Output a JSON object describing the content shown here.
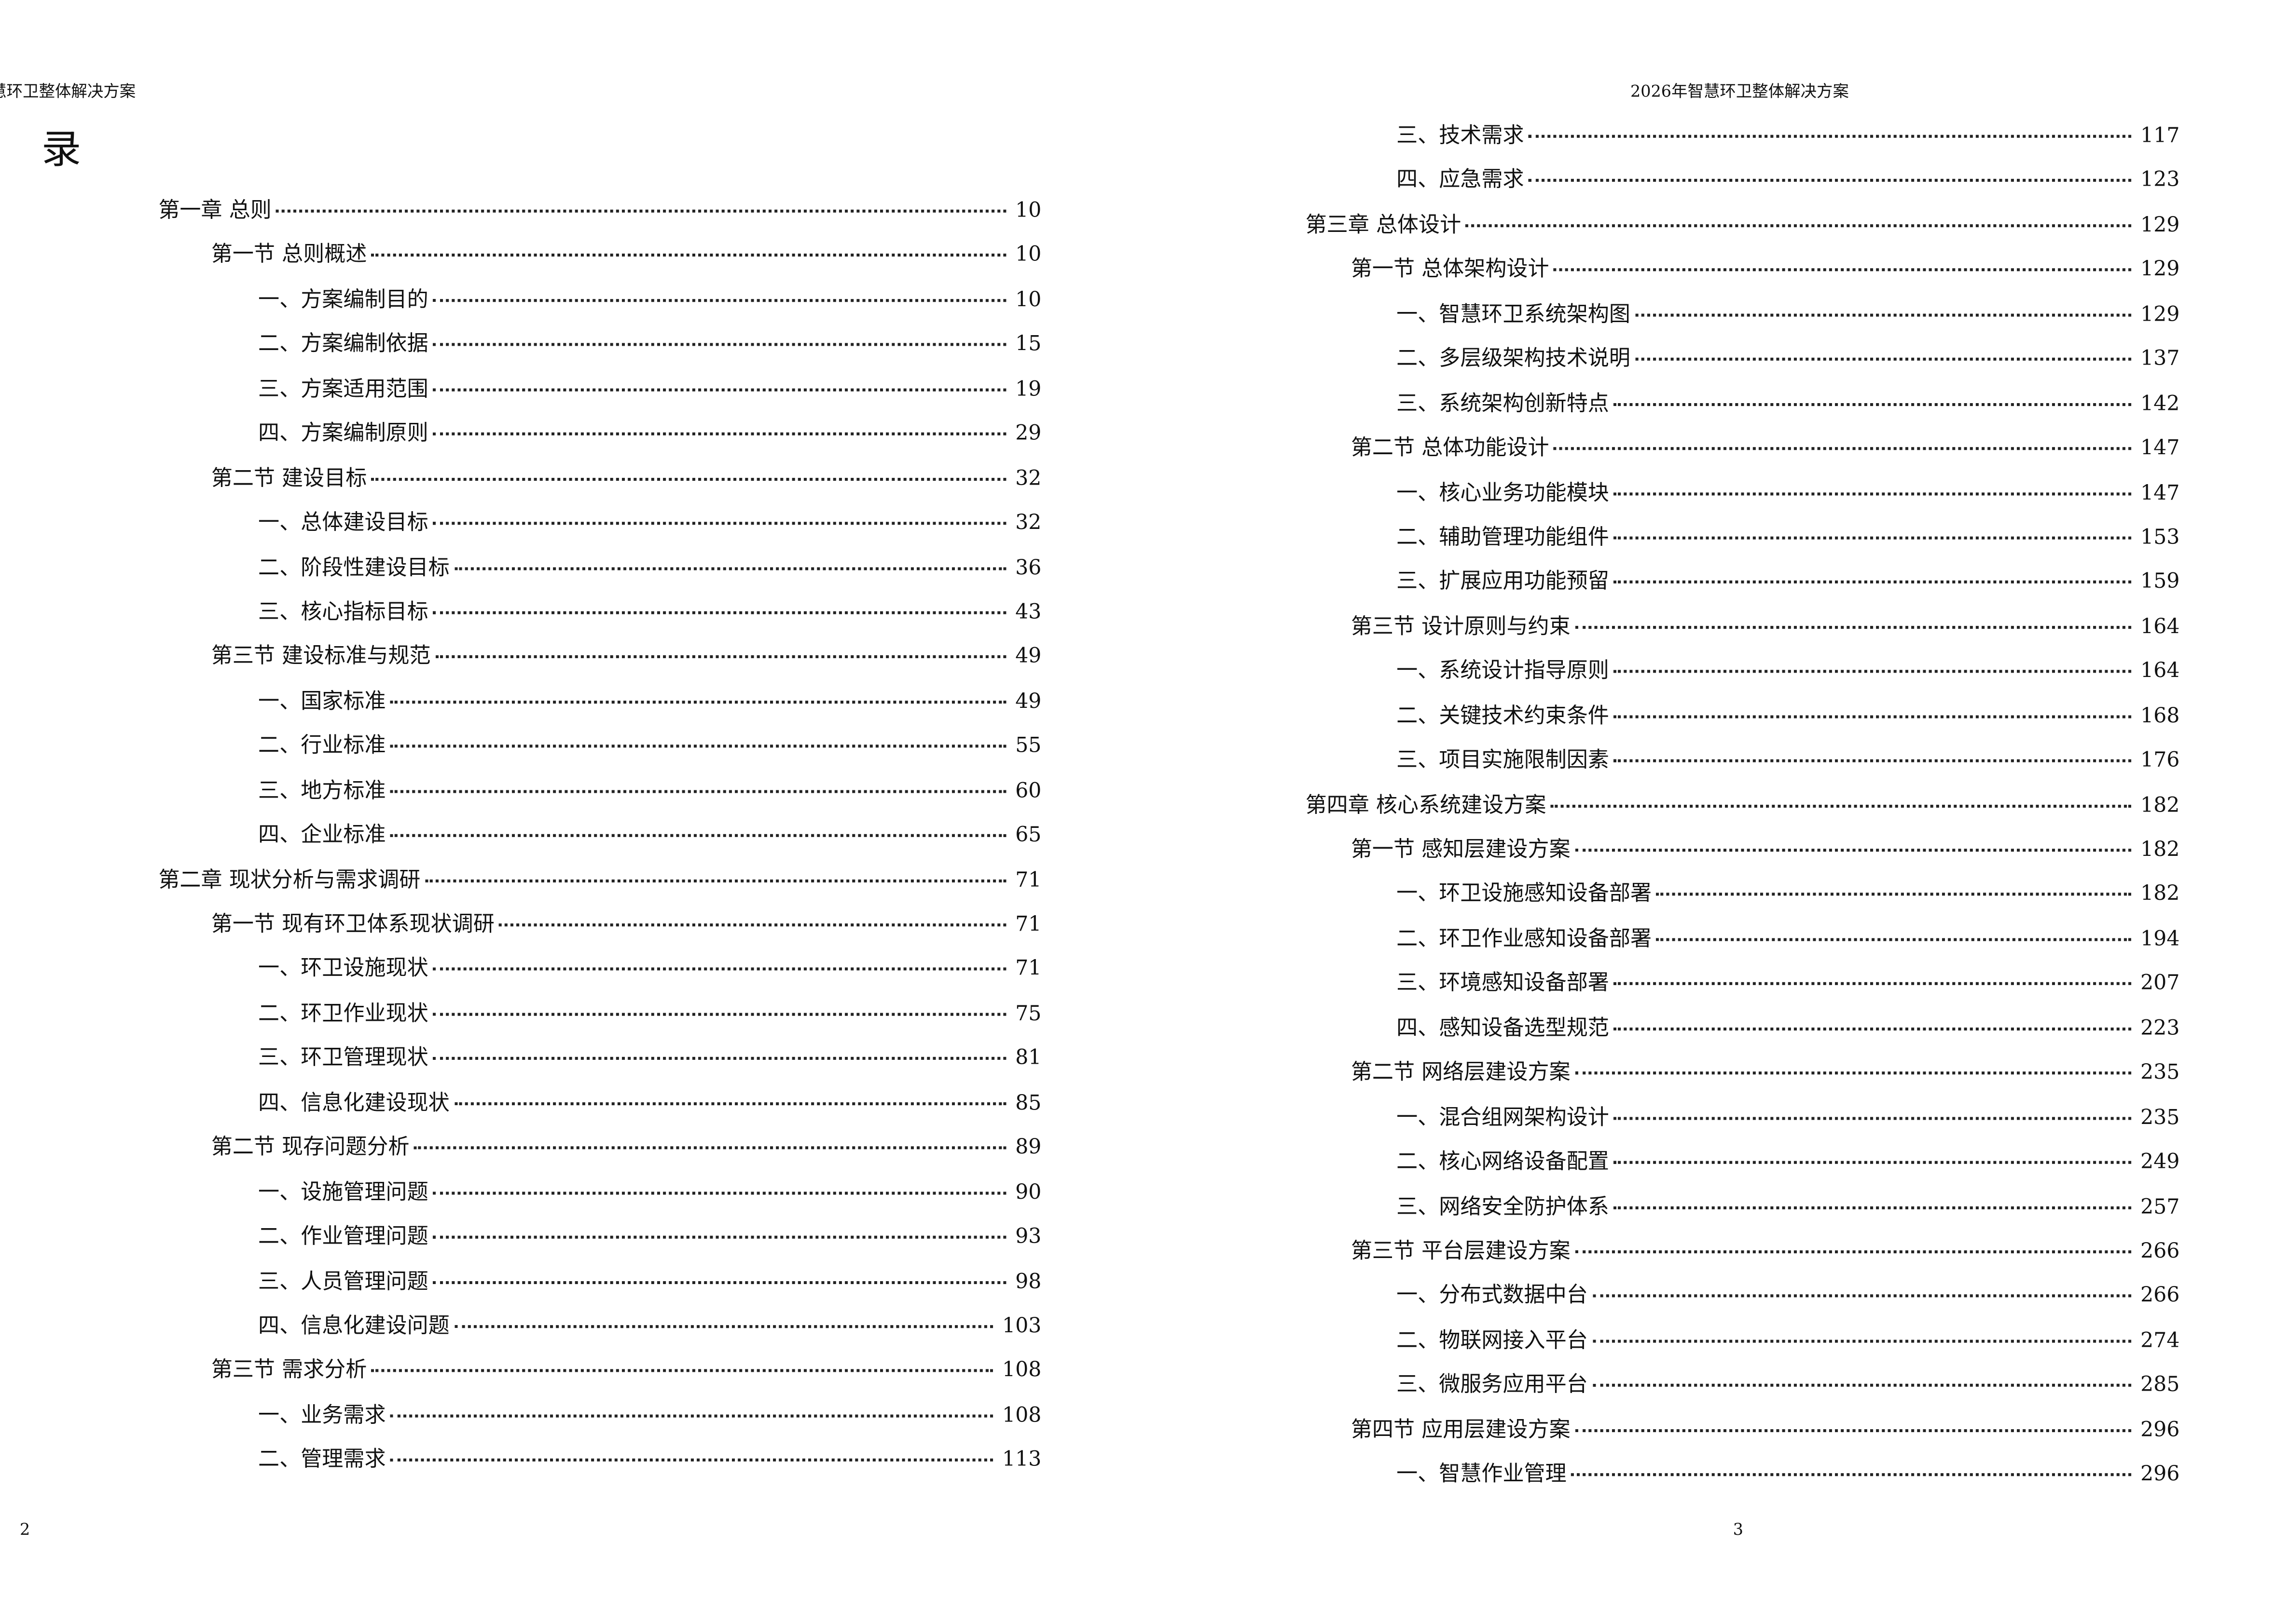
{
  "header": "2026年智慧环卫整体解决方案",
  "title": "目 录",
  "left_page": {
    "page_number": "2",
    "entries": [
      {
        "level": 1,
        "label": "第一章  总则",
        "page": "10"
      },
      {
        "level": 2,
        "label": "第一节  总则概述",
        "page": "10"
      },
      {
        "level": 3,
        "label": "一、方案编制目的",
        "page": "10"
      },
      {
        "level": 3,
        "label": "二、方案编制依据",
        "page": "15"
      },
      {
        "level": 3,
        "label": "三、方案适用范围",
        "page": "19"
      },
      {
        "level": 3,
        "label": "四、方案编制原则",
        "page": "29"
      },
      {
        "level": 2,
        "label": "第二节  建设目标",
        "page": "32"
      },
      {
        "level": 3,
        "label": "一、总体建设目标",
        "page": "32"
      },
      {
        "level": 3,
        "label": "二、阶段性建设目标",
        "page": "36"
      },
      {
        "level": 3,
        "label": "三、核心指标目标",
        "page": "43"
      },
      {
        "level": 2,
        "label": "第三节  建设标准与规范",
        "page": "49"
      },
      {
        "level": 3,
        "label": "一、国家标准",
        "page": "49"
      },
      {
        "level": 3,
        "label": "二、行业标准",
        "page": "55"
      },
      {
        "level": 3,
        "label": "三、地方标准",
        "page": "60"
      },
      {
        "level": 3,
        "label": "四、企业标准",
        "page": "65"
      },
      {
        "level": 1,
        "label": "第二章  现状分析与需求调研",
        "page": "71"
      },
      {
        "level": 2,
        "label": "第一节  现有环卫体系现状调研",
        "page": "71"
      },
      {
        "level": 3,
        "label": "一、环卫设施现状",
        "page": "71"
      },
      {
        "level": 3,
        "label": "二、环卫作业现状",
        "page": "75"
      },
      {
        "level": 3,
        "label": "三、环卫管理现状",
        "page": "81"
      },
      {
        "level": 3,
        "label": "四、信息化建设现状",
        "page": "85"
      },
      {
        "level": 2,
        "label": "第二节  现存问题分析",
        "page": "89"
      },
      {
        "level": 3,
        "label": "一、设施管理问题",
        "page": "90"
      },
      {
        "level": 3,
        "label": "二、作业管理问题",
        "page": "93"
      },
      {
        "level": 3,
        "label": "三、人员管理问题",
        "page": "98"
      },
      {
        "level": 3,
        "label": "四、信息化建设问题",
        "page": "103"
      },
      {
        "level": 2,
        "label": "第三节  需求分析",
        "page": "108"
      },
      {
        "level": 3,
        "label": "一、业务需求",
        "page": "108"
      },
      {
        "level": 3,
        "label": "二、管理需求",
        "page": "113"
      }
    ]
  },
  "right_page": {
    "page_number": "3",
    "entries": [
      {
        "level": 3,
        "label": "三、技术需求",
        "page": "117"
      },
      {
        "level": 3,
        "label": "四、应急需求",
        "page": "123"
      },
      {
        "level": 1,
        "label": "第三章  总体设计",
        "page": "129"
      },
      {
        "level": 2,
        "label": "第一节  总体架构设计",
        "page": "129"
      },
      {
        "level": 3,
        "label": "一、智慧环卫系统架构图",
        "page": "129"
      },
      {
        "level": 3,
        "label": "二、多层级架构技术说明",
        "page": "137"
      },
      {
        "level": 3,
        "label": "三、系统架构创新特点",
        "page": "142"
      },
      {
        "level": 2,
        "label": "第二节  总体功能设计",
        "page": "147"
      },
      {
        "level": 3,
        "label": "一、核心业务功能模块",
        "page": "147"
      },
      {
        "level": 3,
        "label": "二、辅助管理功能组件",
        "page": "153"
      },
      {
        "level": 3,
        "label": "三、扩展应用功能预留",
        "page": "159"
      },
      {
        "level": 2,
        "label": "第三节  设计原则与约束",
        "page": "164"
      },
      {
        "level": 3,
        "label": "一、系统设计指导原则",
        "page": "164"
      },
      {
        "level": 3,
        "label": "二、关键技术约束条件",
        "page": "168"
      },
      {
        "level": 3,
        "label": "三、项目实施限制因素",
        "page": "176"
      },
      {
        "level": 1,
        "label": "第四章  核心系统建设方案",
        "page": "182"
      },
      {
        "level": 2,
        "label": "第一节  感知层建设方案",
        "page": "182"
      },
      {
        "level": 3,
        "label": "一、环卫设施感知设备部署",
        "page": "182"
      },
      {
        "level": 3,
        "label": "二、环卫作业感知设备部署",
        "page": "194"
      },
      {
        "level": 3,
        "label": "三、环境感知设备部署",
        "page": "207"
      },
      {
        "level": 3,
        "label": "四、感知设备选型规范",
        "page": "223"
      },
      {
        "level": 2,
        "label": "第二节  网络层建设方案",
        "page": "235"
      },
      {
        "level": 3,
        "label": "一、混合组网架构设计",
        "page": "235"
      },
      {
        "level": 3,
        "label": "二、核心网络设备配置",
        "page": "249"
      },
      {
        "level": 3,
        "label": "三、网络安全防护体系",
        "page": "257"
      },
      {
        "level": 2,
        "label": "第三节  平台层建设方案",
        "page": "266"
      },
      {
        "level": 3,
        "label": "一、分布式数据中台",
        "page": "266"
      },
      {
        "level": 3,
        "label": "二、物联网接入平台",
        "page": "274"
      },
      {
        "level": 3,
        "label": "三、微服务应用平台",
        "page": "285"
      },
      {
        "level": 2,
        "label": "第四节  应用层建设方案",
        "page": "296"
      },
      {
        "level": 3,
        "label": "一、智慧作业管理",
        "page": "296"
      }
    ]
  }
}
